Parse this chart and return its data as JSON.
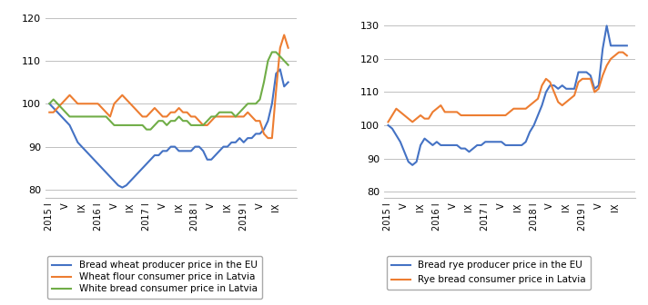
{
  "left_chart": {
    "ylim": [
      78,
      122
    ],
    "yticks": [
      80,
      90,
      100,
      110,
      120
    ],
    "series": {
      "bread_wheat": [
        100,
        99,
        98,
        97,
        96,
        95,
        93,
        91,
        90,
        89,
        88,
        87,
        86,
        85,
        84,
        83,
        82,
        81,
        80.5,
        81,
        82,
        83,
        84,
        85,
        86,
        87,
        88,
        88,
        89,
        89,
        90,
        90,
        89,
        89,
        89,
        89,
        90,
        90,
        89,
        87,
        87,
        88,
        89,
        90,
        90,
        91,
        91,
        92,
        91,
        92,
        92,
        93,
        93,
        94,
        96,
        100,
        107,
        108,
        104,
        105
      ],
      "wheat_flour": [
        98,
        98,
        99,
        100,
        101,
        102,
        101,
        100,
        100,
        100,
        100,
        100,
        100,
        99,
        98,
        97,
        100,
        101,
        102,
        101,
        100,
        99,
        98,
        97,
        97,
        98,
        99,
        98,
        97,
        97,
        98,
        98,
        99,
        98,
        98,
        97,
        97,
        96,
        95,
        95,
        96,
        97,
        97,
        97,
        97,
        97,
        97,
        97,
        97,
        98,
        97,
        96,
        96,
        93,
        92,
        92,
        103,
        113,
        116,
        113
      ],
      "white_bread": [
        100,
        101,
        100,
        99,
        98,
        97,
        97,
        97,
        97,
        97,
        97,
        97,
        97,
        97,
        97,
        96,
        95,
        95,
        95,
        95,
        95,
        95,
        95,
        95,
        94,
        94,
        95,
        96,
        96,
        95,
        96,
        96,
        97,
        96,
        96,
        95,
        95,
        95,
        95,
        96,
        97,
        97,
        98,
        98,
        98,
        98,
        97,
        98,
        99,
        100,
        100,
        100,
        101,
        105,
        110,
        112,
        112,
        111,
        110,
        109
      ]
    },
    "colors": {
      "bread_wheat": "#4472C4",
      "wheat_flour": "#ED7D31",
      "white_bread": "#70AD47"
    },
    "legend": [
      "Bread wheat producer price in the EU",
      "Wheat flour consumer price in Latvia",
      "White bread consumer price in Latvia"
    ]
  },
  "right_chart": {
    "ylim": [
      78,
      135
    ],
    "yticks": [
      80,
      90,
      100,
      110,
      120,
      130
    ],
    "series": {
      "bread_rye": [
        100,
        99,
        97,
        95,
        92,
        89,
        88,
        89,
        94,
        96,
        95,
        94,
        95,
        94,
        94,
        94,
        94,
        94,
        93,
        93,
        92,
        93,
        94,
        94,
        95,
        95,
        95,
        95,
        95,
        94,
        94,
        94,
        94,
        94,
        95,
        98,
        100,
        103,
        106,
        110,
        112,
        112,
        111,
        112,
        111,
        111,
        111,
        116,
        116,
        116,
        115,
        111,
        112,
        123,
        130,
        124,
        124,
        124,
        124,
        124
      ],
      "rye_bread": [
        101,
        103,
        105,
        104,
        103,
        102,
        101,
        102,
        103,
        102,
        102,
        104,
        105,
        106,
        104,
        104,
        104,
        104,
        103,
        103,
        103,
        103,
        103,
        103,
        103,
        103,
        103,
        103,
        103,
        103,
        104,
        105,
        105,
        105,
        105,
        106,
        107,
        108,
        112,
        114,
        113,
        110,
        107,
        106,
        107,
        108,
        109,
        113,
        114,
        114,
        114,
        110,
        111,
        115,
        118,
        120,
        121,
        122,
        122,
        121
      ]
    },
    "colors": {
      "bread_rye": "#4472C4",
      "rye_bread": "#ED7D31"
    },
    "legend": [
      "Bread rye producer price in the EU",
      "Rye bread consumer price in Latvia"
    ]
  },
  "tick_months": [
    0,
    4,
    8,
    12,
    16,
    20,
    24,
    28,
    32,
    36,
    40,
    44,
    48,
    52,
    56
  ],
  "tick_labels": [
    "2015 I",
    "V",
    "IX",
    "2016 I",
    "V",
    "IX",
    "2017 I",
    "V",
    "IX",
    "2018 I",
    "V",
    "IX",
    "2019 I",
    "V",
    "IX"
  ],
  "line_width": 1.5,
  "font_size_tick": 7,
  "font_size_legend": 7.5
}
